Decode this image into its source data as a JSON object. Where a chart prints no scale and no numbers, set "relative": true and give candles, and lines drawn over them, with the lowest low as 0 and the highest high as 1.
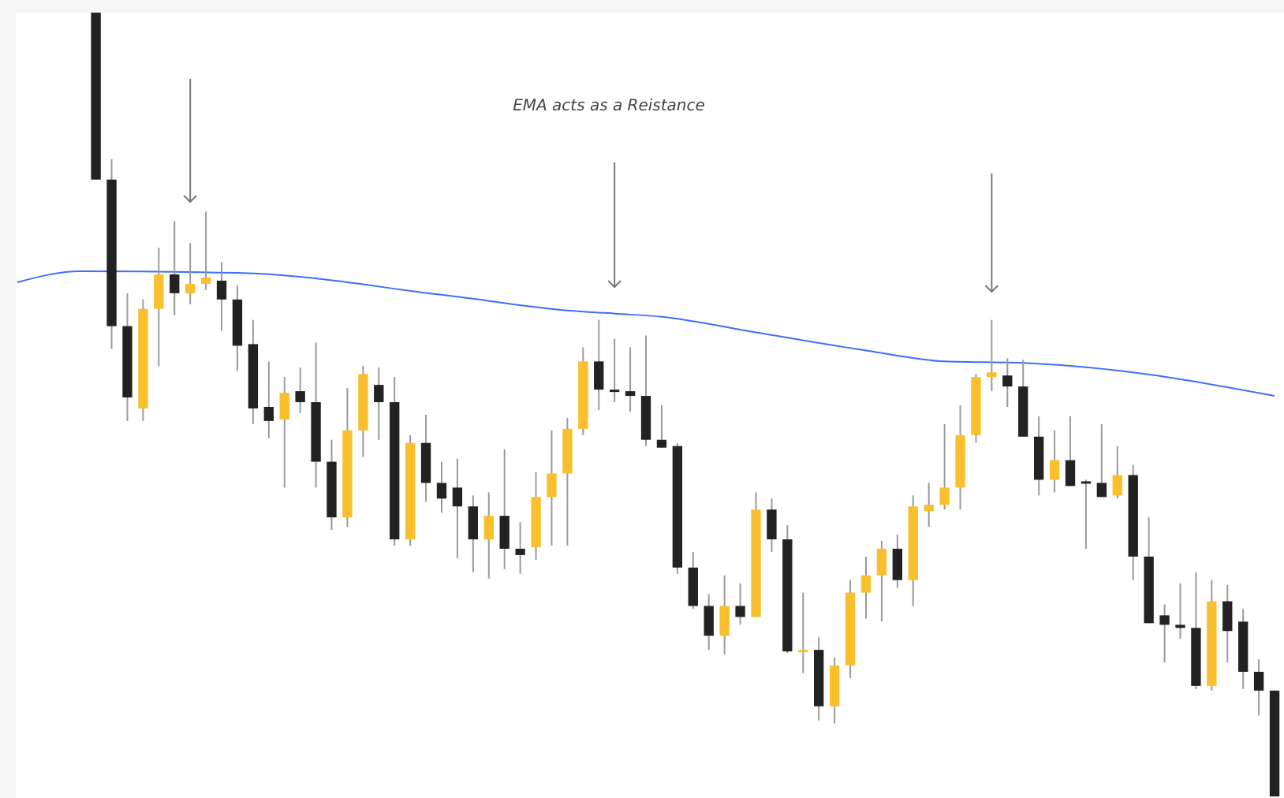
{
  "chart_data": {
    "type": "candlestick",
    "relative": true,
    "annotations": [
      "EMA acts as a Reistance"
    ],
    "colors": [
      null,
      null,
      null,
      null,
      null,
      "#222222",
      "#222222",
      "#222222",
      "#f9bf2c",
      "#f9bf2c",
      "#222222",
      "#f9bf2c",
      "#f9bf2c",
      "#222222",
      "#222222",
      "#222222",
      "#222222",
      "#f9bf2c",
      "#222222",
      "#222222",
      "#222222",
      "#f9bf2c",
      "#f9bf2c",
      "#222222",
      "#222222",
      "#f9bf2c",
      "#222222",
      "#222222",
      "#222222",
      "#222222",
      "#f9bf2c",
      "#222222",
      "#222222",
      "#f9bf2c",
      "#f9bf2c",
      "#f9bf2c",
      "#f9bf2c",
      "#222222",
      "#222222",
      "#222222",
      "#222222",
      "#222222",
      "#222222",
      "#222222",
      "#222222",
      "#f9bf2c",
      "#222222",
      "#f9bf2c",
      "#222222",
      "#222222",
      "#f9bf2c",
      "#222222",
      "#f9bf2c",
      "#f9bf2c",
      "#f9bf2c",
      "#f9bf2c",
      "#222222",
      "#f9bf2c",
      "#f9bf2c",
      "#f9bf2c",
      "#f9bf2c",
      "#f9bf2c",
      "#f9bf2c",
      "#222222",
      "#222222",
      "#222222",
      "#f9bf2c",
      "#222222",
      "#222222",
      "#222222",
      "#f9bf2c",
      "#222222",
      "#222222",
      "#222222",
      "#222222",
      "#222222",
      "#f9bf2c",
      "#222222",
      "#222222",
      "#222222",
      "#222222"
    ],
    "categories": [
      null,
      null,
      null,
      null,
      null,
      null,
      null,
      null,
      null,
      null,
      null,
      null,
      null,
      null,
      null,
      null,
      null,
      null,
      null,
      null,
      null,
      null,
      null,
      null,
      null,
      null,
      null,
      null,
      null,
      null,
      null,
      null,
      null,
      null,
      null,
      null,
      null,
      null,
      null,
      null,
      null,
      null,
      null,
      null,
      null,
      null,
      null,
      null,
      null,
      null,
      null,
      null,
      null,
      null,
      null,
      null,
      null,
      null,
      null,
      null,
      null,
      null,
      null,
      null,
      null,
      null,
      null,
      null,
      null,
      null,
      null,
      null,
      null,
      null,
      null,
      null,
      null,
      null,
      null,
      null,
      null
    ],
    "ohlc": [
      null,
      null,
      null,
      null,
      null,
      [
        1.0,
        1.0,
        0.787,
        0.787
      ],
      [
        0.787,
        0.813,
        0.571,
        0.6
      ],
      [
        0.6,
        0.642,
        0.479,
        0.509
      ],
      [
        0.495,
        0.634,
        0.479,
        0.622
      ],
      [
        0.622,
        0.7,
        0.549,
        0.666
      ],
      [
        0.666,
        0.734,
        0.614,
        0.642
      ],
      [
        0.642,
        0.706,
        0.628,
        0.654
      ],
      [
        0.654,
        0.746,
        0.646,
        0.662
      ],
      [
        0.658,
        0.682,
        0.594,
        0.634
      ],
      [
        0.634,
        0.652,
        0.543,
        0.575
      ],
      [
        0.577,
        0.608,
        0.475,
        0.495
      ],
      [
        0.497,
        0.555,
        0.457,
        0.479
      ],
      [
        0.481,
        0.535,
        0.394,
        0.515
      ],
      [
        0.517,
        0.547,
        0.489,
        0.503
      ],
      [
        0.503,
        0.579,
        0.394,
        0.427
      ],
      [
        0.427,
        0.455,
        0.34,
        0.356
      ],
      [
        0.356,
        0.521,
        0.344,
        0.467
      ],
      [
        0.467,
        0.549,
        0.433,
        0.539
      ],
      [
        0.525,
        0.547,
        0.455,
        0.503
      ],
      [
        0.503,
        0.535,
        0.32,
        0.328
      ],
      [
        0.328,
        0.461,
        0.32,
        0.451
      ],
      [
        0.451,
        0.487,
        0.376,
        0.4
      ],
      [
        0.4,
        0.427,
        0.362,
        0.38
      ],
      [
        0.394,
        0.431,
        0.304,
        0.37
      ],
      [
        0.37,
        0.384,
        0.286,
        0.328
      ],
      [
        0.328,
        0.388,
        0.278,
        0.358
      ],
      [
        0.358,
        0.443,
        0.29,
        0.316
      ],
      [
        0.316,
        0.35,
        0.284,
        0.308
      ],
      [
        0.318,
        0.414,
        0.302,
        0.382
      ],
      [
        0.382,
        0.467,
        0.32,
        0.412
      ],
      [
        0.412,
        0.483,
        0.32,
        0.469
      ],
      [
        0.469,
        0.573,
        0.461,
        0.555
      ],
      [
        0.555,
        0.608,
        0.493,
        0.519
      ],
      [
        0.519,
        0.584,
        0.503,
        0.517
      ],
      [
        0.517,
        0.573,
        0.491,
        0.511
      ],
      [
        0.511,
        0.588,
        0.447,
        0.455
      ],
      [
        0.455,
        0.499,
        0.445,
        0.445
      ],
      [
        0.447,
        0.451,
        0.284,
        0.292
      ],
      [
        0.292,
        0.312,
        0.239,
        0.243
      ],
      [
        0.243,
        0.258,
        0.187,
        0.205
      ],
      [
        0.205,
        0.282,
        0.181,
        0.243
      ],
      [
        0.243,
        0.272,
        0.219,
        0.229
      ],
      [
        0.229,
        0.388,
        0.229,
        0.366
      ],
      [
        0.366,
        0.38,
        0.312,
        0.328
      ],
      [
        0.328,
        0.346,
        0.183,
        0.185
      ],
      [
        0.185,
        0.26,
        0.157,
        0.187
      ],
      [
        0.187,
        0.203,
        0.097,
        0.115
      ],
      [
        0.115,
        0.177,
        0.093,
        0.167
      ],
      [
        0.167,
        0.276,
        0.151,
        0.26
      ],
      [
        0.26,
        0.306,
        0.227,
        0.282
      ],
      [
        0.282,
        0.326,
        0.223,
        0.316
      ],
      [
        0.316,
        0.334,
        0.266,
        0.276
      ],
      [
        0.276,
        0.384,
        0.243,
        0.37
      ],
      [
        0.364,
        0.4,
        0.344,
        0.372
      ],
      [
        0.372,
        0.475,
        0.366,
        0.394
      ],
      [
        0.394,
        0.499,
        0.366,
        0.461
      ],
      [
        0.461,
        0.539,
        0.451,
        0.535
      ],
      [
        0.535,
        0.608,
        0.517,
        0.541
      ],
      [
        0.537,
        0.559,
        0.497,
        0.523
      ],
      [
        0.523,
        0.557,
        0.459,
        0.459
      ],
      [
        0.459,
        0.485,
        0.384,
        0.404
      ],
      [
        0.404,
        0.467,
        0.388,
        0.429
      ],
      [
        0.429,
        0.485,
        0.396,
        0.396
      ],
      [
        0.402,
        0.404,
        0.316,
        0.4
      ],
      [
        0.4,
        0.475,
        0.382,
        0.382
      ],
      [
        0.384,
        0.447,
        0.38,
        0.41
      ],
      [
        0.41,
        0.423,
        0.276,
        0.306
      ],
      [
        0.306,
        0.356,
        0.221,
        0.221
      ],
      [
        0.231,
        0.245,
        0.171,
        0.219
      ],
      [
        0.219,
        0.272,
        0.201,
        0.215
      ],
      [
        0.215,
        0.286,
        0.137,
        0.141
      ],
      [
        0.141,
        0.276,
        0.135,
        0.249
      ],
      [
        0.249,
        0.27,
        0.171,
        0.211
      ],
      [
        0.223,
        0.239,
        0.137,
        0.159
      ],
      [
        0.159,
        0.175,
        0.103,
        0.135
      ],
      [
        0.135,
        0.135,
        0.0,
        0.0
      ]
    ],
    "series": [
      {
        "type": "line",
        "color": "#3d6ef7",
        "values": [
          0.656,
          null,
          null,
          null,
          0.67,
          null,
          null,
          null,
          null,
          null,
          null,
          null,
          null,
          null,
          0.668,
          null,
          null,
          null,
          null,
          null,
          null,
          null,
          null,
          null,
          null,
          null,
          null,
          0.64,
          null,
          null,
          null,
          null,
          null,
          null,
          null,
          0.62,
          null,
          null,
          0.616,
          null,
          null,
          0.612,
          null,
          null,
          null,
          null,
          null,
          0.592,
          null,
          null,
          null,
          null,
          null,
          null,
          0.569,
          null,
          null,
          null,
          null,
          0.555,
          null,
          null,
          null,
          null,
          0.553,
          null,
          null,
          null,
          null,
          null,
          null,
          0.541,
          null,
          null,
          null,
          null,
          null,
          null,
          null,
          null,
          0.511
        ]
      }
    ]
  }
}
